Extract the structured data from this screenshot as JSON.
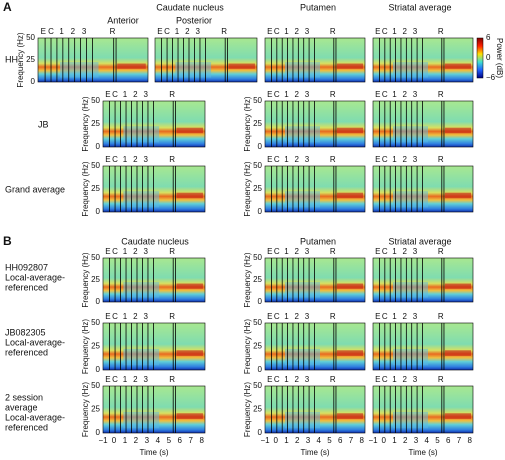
{
  "panel_a": {
    "letter": "A",
    "headers": [
      "Caudate nucleus",
      "Putamen",
      "Striatal average"
    ],
    "subheaders": [
      "Anterior",
      "Posterior"
    ],
    "rows": [
      "HH",
      "JB",
      "Grand average"
    ]
  },
  "panel_b": {
    "letter": "B",
    "headers": [
      "Caudate nucleus",
      "Putamen",
      "Striatal average"
    ],
    "rows": [
      [
        "HH092807",
        "Local-average-",
        "referenced"
      ],
      [
        "JB082305",
        "Local-average-",
        "referenced"
      ],
      [
        "2 session",
        "average",
        "Local-average-",
        "referenced"
      ]
    ]
  },
  "axes": {
    "y_label": "Frequency (Hz)",
    "y_ticks": [
      "50",
      "25",
      "0"
    ],
    "events": [
      "E",
      "C",
      "1",
      "2",
      "3",
      "R"
    ],
    "x_ticks": [
      "−1",
      "0",
      "1",
      "2",
      "3",
      "4",
      "5",
      "6",
      "7",
      "8"
    ],
    "x_label": "Time (s)"
  },
  "colorbar": {
    "label": "Power (dB)",
    "ticks": [
      "6",
      "0",
      "−6"
    ]
  }
}
